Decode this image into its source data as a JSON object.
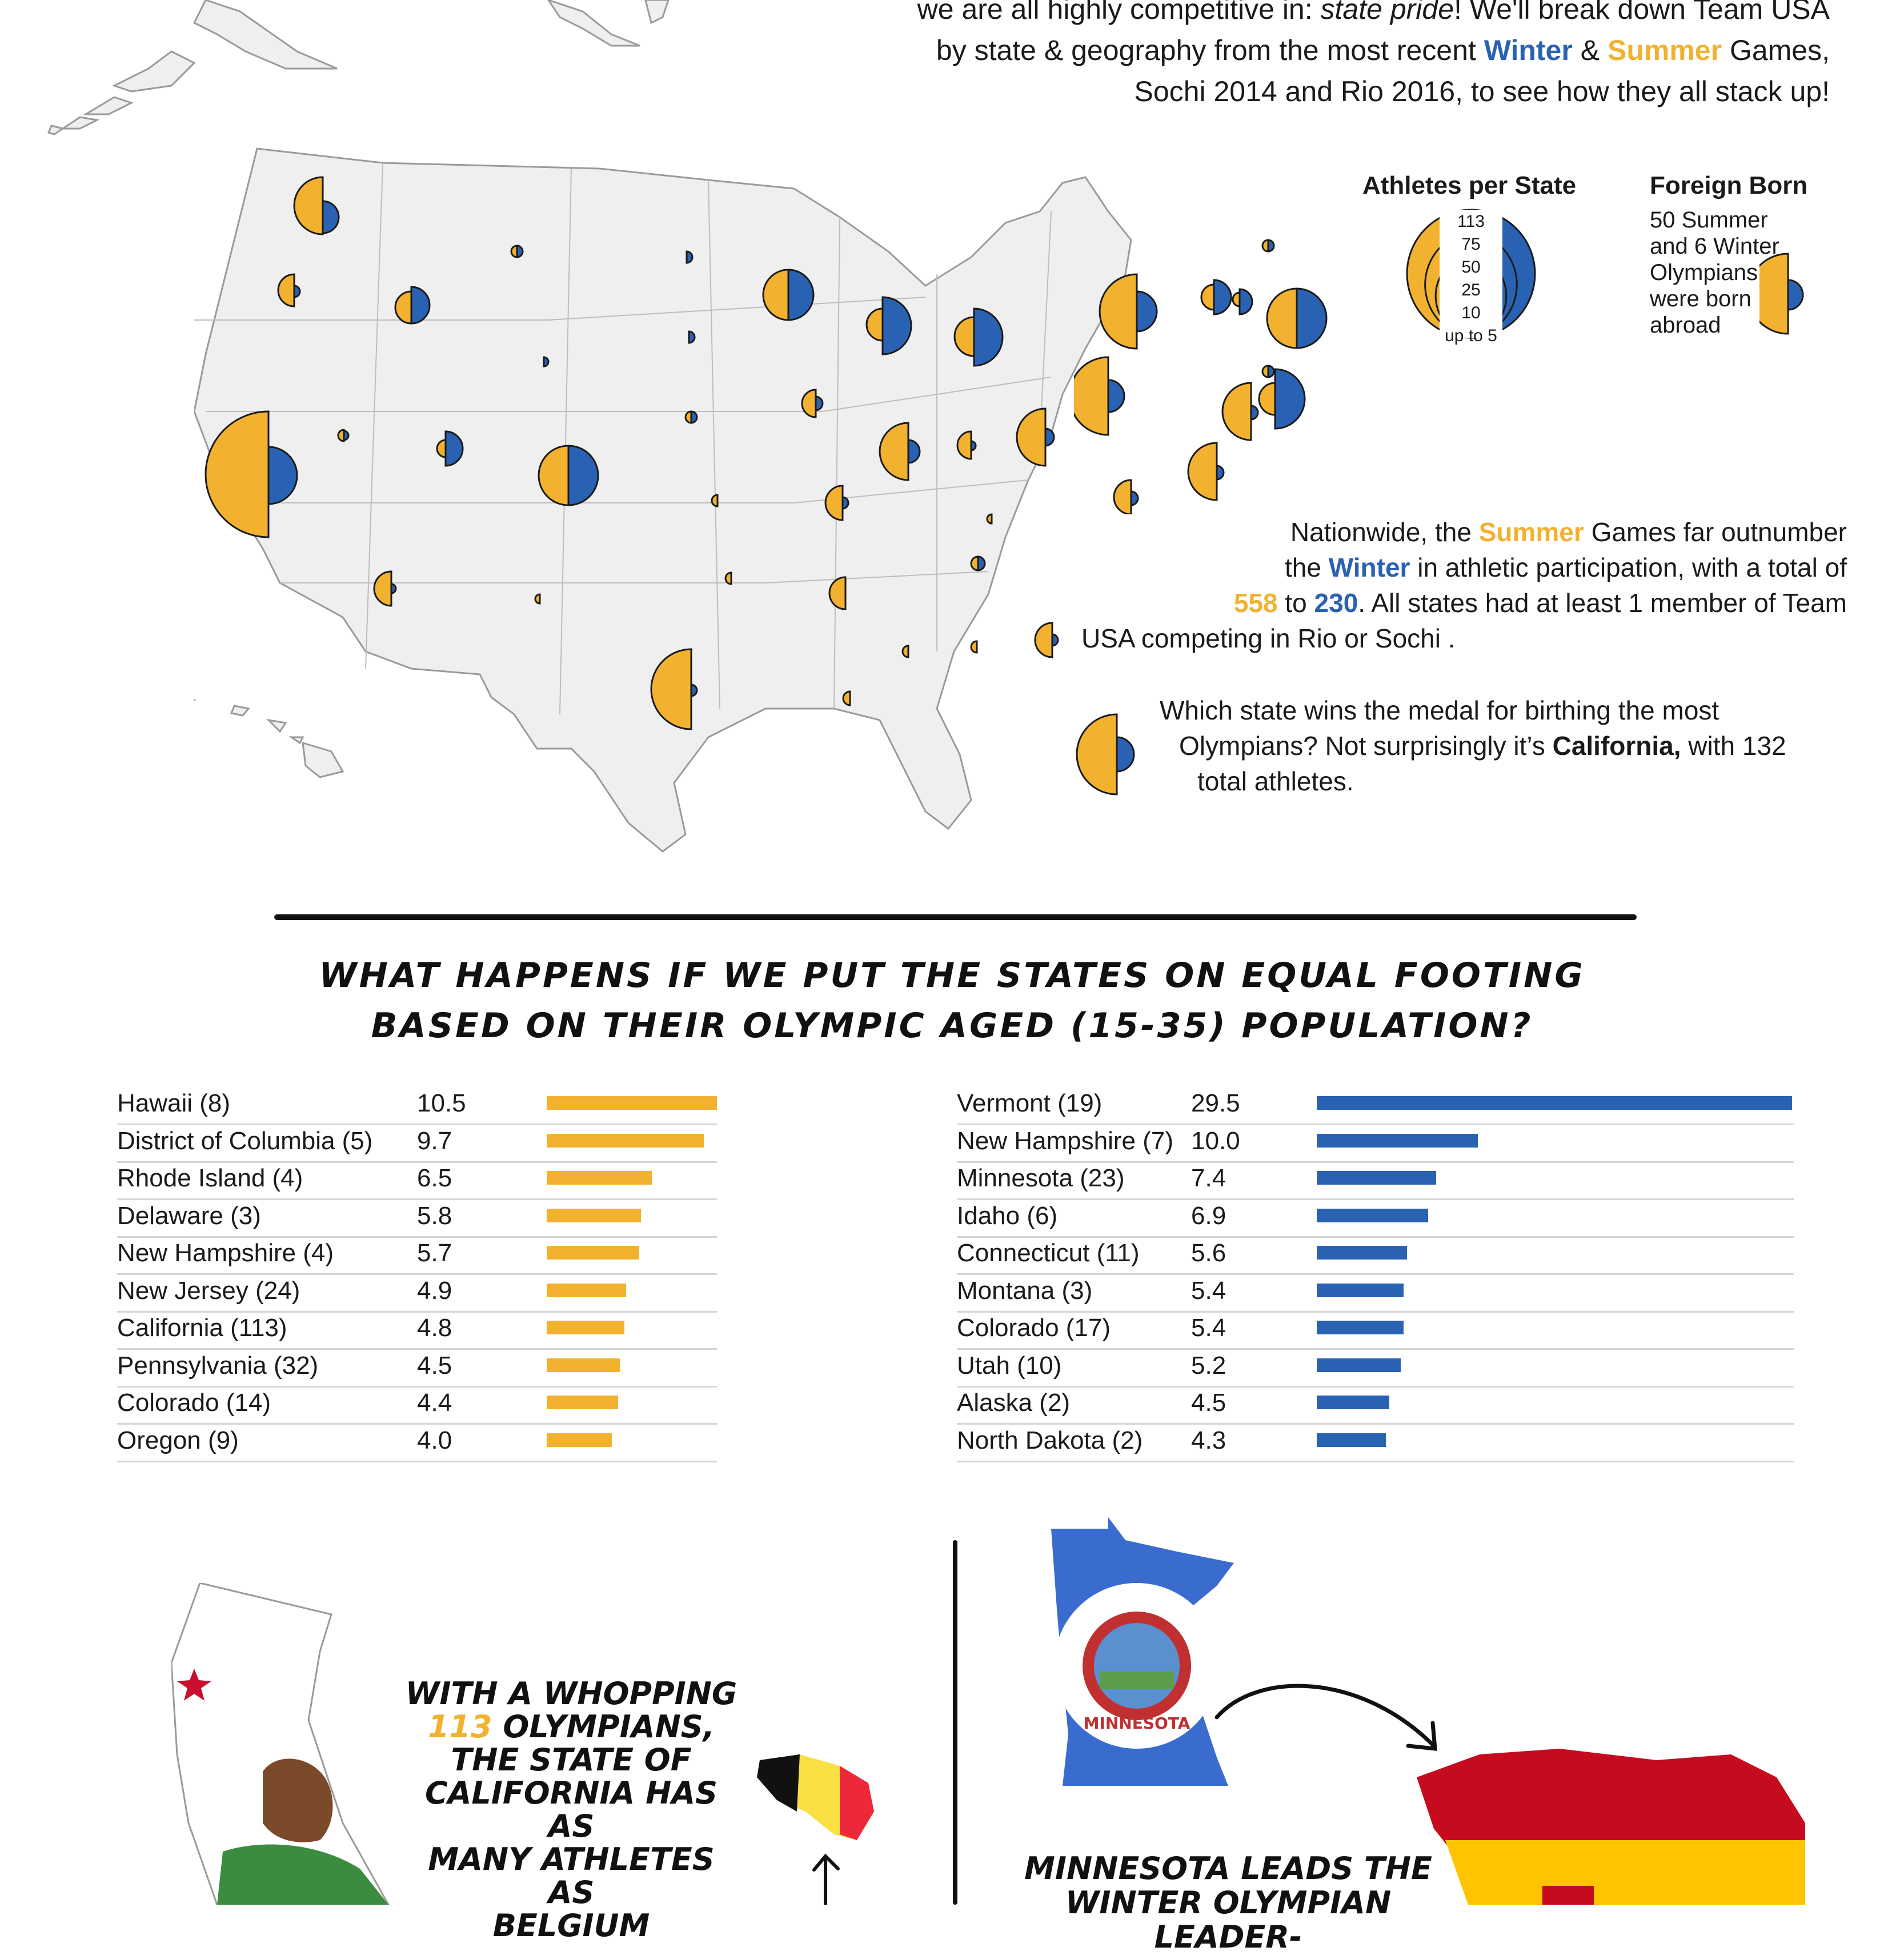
{
  "intro": {
    "line1_start": "we are all highly competitive in: ",
    "line1_italic": "state pride",
    "line1_end": "! We'll break down Team USA",
    "line2_start": "by state & geography from the most recent ",
    "winter": "Winter",
    "amp": " & ",
    "summer": "Summer",
    "line2_end": " Games,",
    "line3": "Sochi 2014 and Rio 2016, to see how they all stack up!"
  },
  "legend": {
    "athletes_title": "Athletes per State",
    "sizes": [
      "113",
      "75",
      "50",
      "25",
      "10",
      "up to 5"
    ],
    "foreign_title": "Foreign Born",
    "foreign_text": [
      "50 Summer",
      "and 6 Winter",
      "Olympians",
      "were born",
      "abroad"
    ]
  },
  "nationwide": {
    "p1_a": "Nationwide, the ",
    "p1_summer": "Summer",
    "p1_b": " Games far outnumber",
    "p2_a": "the ",
    "p2_winter": "Winter",
    "p2_b": " in athletic participation, with a total of",
    "p3_summer_total": "558",
    "p3_to": " to ",
    "p3_winter_total": "230",
    "p3_b": ". All states had at least 1 member of Team",
    "p4": "USA competing in Rio or Sochi .",
    "q1": "Which state wins the medal for birthing the most",
    "q2_a": "Olympians? Not surprisingly it’s ",
    "q2_bold": "California,",
    "q2_b": " with 132",
    "q3": "total athletes."
  },
  "heading": {
    "line1": "What happens if we put the states on equal footing",
    "line2": "based on their Olympic aged (15-35) population?"
  },
  "chart_data": [
    {
      "type": "bar",
      "series": [
        {
          "name": "",
          "color": "#f2b230"
        }
      ],
      "categories": [
        "Hawaii (8)",
        "District of Columbia (5)",
        "Rhode Island (4)",
        "Delaware (3)",
        "New Hampshire (4)",
        "New Jersey (24)",
        "California (113)",
        "Pennsylvania (32)",
        "Colorado (14)",
        "Oregon (9)"
      ],
      "values": [
        10.5,
        9.7,
        6.5,
        5.8,
        5.7,
        4.9,
        4.8,
        4.5,
        4.4,
        4.0
      ],
      "labels": [
        "10.5",
        "9.7",
        "6.5",
        "5.8",
        "5.7",
        "4.9",
        "4.8",
        "4.5",
        "4.4",
        "4.0"
      ]
    },
    {
      "type": "bar",
      "series": [
        {
          "name": "",
          "color": "#2a62b3"
        }
      ],
      "categories": [
        "Vermont (19)",
        "New Hampshire (7)",
        "Minnesota (23)",
        "Idaho (6)",
        "Connecticut (11)",
        "Montana (3)",
        "Colorado (17)",
        "Utah (10)",
        "Alaska (2)",
        "North Dakota (2)"
      ],
      "values": [
        29.5,
        10.0,
        7.4,
        6.9,
        5.6,
        5.4,
        5.4,
        5.2,
        4.5,
        4.3
      ],
      "labels": [
        "29.5",
        "10.0",
        "7.4",
        "6.9",
        "5.6",
        "5.4",
        "5.4",
        "5.2",
        "4.5",
        "4.3"
      ]
    }
  ],
  "california_callout": {
    "l1": "With a whopping",
    "num": "113",
    "l2": " Olympians,",
    "l3": "The state of",
    "l4": "california has as",
    "l5": "many athletes as",
    "l6": "Belgium"
  },
  "minnesota_callout": {
    "seal_label": "MINNESOTA",
    "l1": "Minnesota leads the",
    "l2": "winter olympian leader-"
  },
  "colors": {
    "summer": "#f2b230",
    "winter": "#2a62b3",
    "map_fill": "#efefef",
    "map_stroke": "#9a9a9a"
  }
}
